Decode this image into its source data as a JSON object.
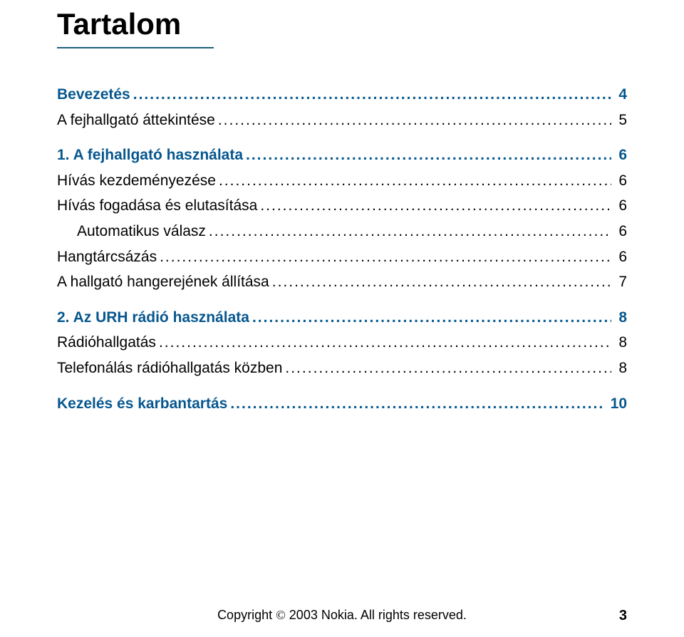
{
  "heading": "Tartalom",
  "rule_color": "#205f7a",
  "link_color": "#06578f",
  "text_color": "#000000",
  "background_color": "#ffffff",
  "font_sizes": {
    "heading": 42,
    "toc": 21,
    "footer": 18,
    "pagenum": 20
  },
  "toc": [
    {
      "label": "Bevezetés",
      "page": "4",
      "level": 0,
      "bold": true
    },
    {
      "label": "A fejhallgató áttekintése",
      "page": "5",
      "level": 0,
      "bold": false
    },
    {
      "label": "1. A fejhallgató használata",
      "page": "6",
      "level": 0,
      "bold": true,
      "gap_before": true
    },
    {
      "label": "Hívás kezdeményezése",
      "page": "6",
      "level": 0,
      "bold": false
    },
    {
      "label": "Hívás fogadása és elutasítása",
      "page": "6",
      "level": 0,
      "bold": false
    },
    {
      "label": "Automatikus válasz",
      "page": "6",
      "level": 1,
      "bold": false
    },
    {
      "label": "Hangtárcsázás",
      "page": "6",
      "level": 0,
      "bold": false
    },
    {
      "label": "A hallgató hangerejének állítása",
      "page": "7",
      "level": 0,
      "bold": false
    },
    {
      "label": "2. Az URH rádió használata",
      "page": "8",
      "level": 0,
      "bold": true,
      "gap_before": true
    },
    {
      "label": "Rádióhallgatás",
      "page": "8",
      "level": 0,
      "bold": false
    },
    {
      "label": "Telefonálás rádióhallgatás közben",
      "page": "8",
      "level": 0,
      "bold": false
    },
    {
      "label": "Kezelés és karbantartás",
      "page": "10",
      "level": 0,
      "bold": true,
      "gap_before": true
    }
  ],
  "footer": {
    "text_before": "Copyright ",
    "symbol": "©",
    "text_after": " 2003 Nokia. All rights reserved.",
    "page_number": "3"
  }
}
